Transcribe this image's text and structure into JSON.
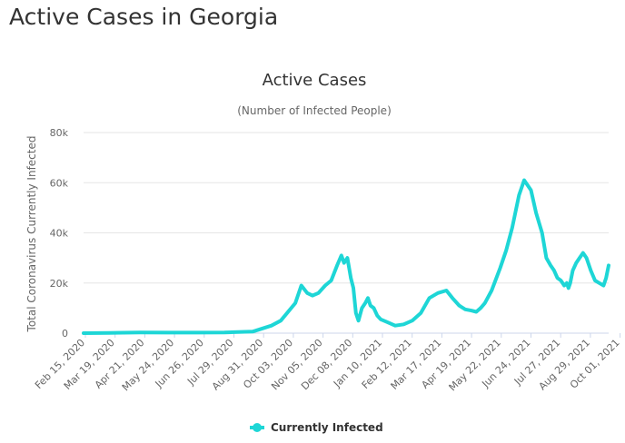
{
  "page": {
    "title": "Active Cases in Georgia"
  },
  "chart_data": {
    "type": "line",
    "title": "Active Cases",
    "subtitle": "(Number of Infected People)",
    "xlabel": "",
    "ylabel": "Total Coronavirus Currently Infected",
    "ylim": [
      0,
      80000
    ],
    "yticks": [
      0,
      20000,
      40000,
      60000,
      80000
    ],
    "ytick_labels": [
      "0",
      "20k",
      "40k",
      "60k",
      "80k"
    ],
    "grid": true,
    "legend_position": "bottom-center",
    "line_color": "#1ed6d6",
    "x_tick_labels": [
      "Feb 15, 2020",
      "Mar 19, 2020",
      "Apr 21, 2020",
      "May 24, 2020",
      "Jun 26, 2020",
      "Jul 29, 2020",
      "Aug 31, 2020",
      "Oct 03, 2020",
      "Nov 05, 2020",
      "Dec 08, 2020",
      "Jan 10, 2021",
      "Feb 12, 2021",
      "Mar 17, 2021",
      "Apr 19, 2021",
      "May 22, 2021",
      "Jun 24, 2021",
      "Jul 27, 2021",
      "Aug 29, 2021",
      "Oct 01, 2021"
    ],
    "series": [
      {
        "name": "Currently Infected",
        "color": "#1ed6d6",
        "x_day": [
          0,
          30,
          66,
          99,
          132,
          165,
          198,
          220,
          231,
          248,
          255,
          262,
          268,
          275,
          283,
          290,
          297,
          302,
          305,
          309,
          313,
          316,
          319,
          322,
          326,
          330,
          333,
          336,
          340,
          344,
          348,
          355,
          365,
          375,
          385,
          395,
          405,
          415,
          425,
          432,
          440,
          447,
          454,
          460,
          465,
          470,
          478,
          488,
          495,
          502,
          510,
          516,
          524,
          530,
          537,
          542,
          547,
          551,
          555,
          559,
          563,
          566,
          568,
          570,
          573,
          577,
          581,
          585,
          589,
          594,
          599,
          604,
          609,
          612,
          615
        ],
        "values": [
          0,
          100,
          300,
          200,
          200,
          300,
          600,
          3000,
          5000,
          12000,
          19000,
          16000,
          15000,
          16000,
          19000,
          21000,
          27000,
          31000,
          28000,
          30000,
          22000,
          18000,
          8000,
          5000,
          10000,
          12000,
          14000,
          11000,
          10000,
          7000,
          5500,
          4500,
          3000,
          3500,
          5000,
          8000,
          14000,
          16000,
          17000,
          14000,
          11000,
          9500,
          9000,
          8500,
          10000,
          12000,
          17000,
          26000,
          33000,
          42000,
          55000,
          61000,
          57000,
          48000,
          40000,
          30000,
          27000,
          25000,
          22000,
          21000,
          19000,
          20000,
          18000,
          20000,
          25000,
          28000,
          30000,
          32000,
          30000,
          25000,
          21000,
          20000,
          19000,
          22000,
          27000
        ]
      }
    ]
  }
}
